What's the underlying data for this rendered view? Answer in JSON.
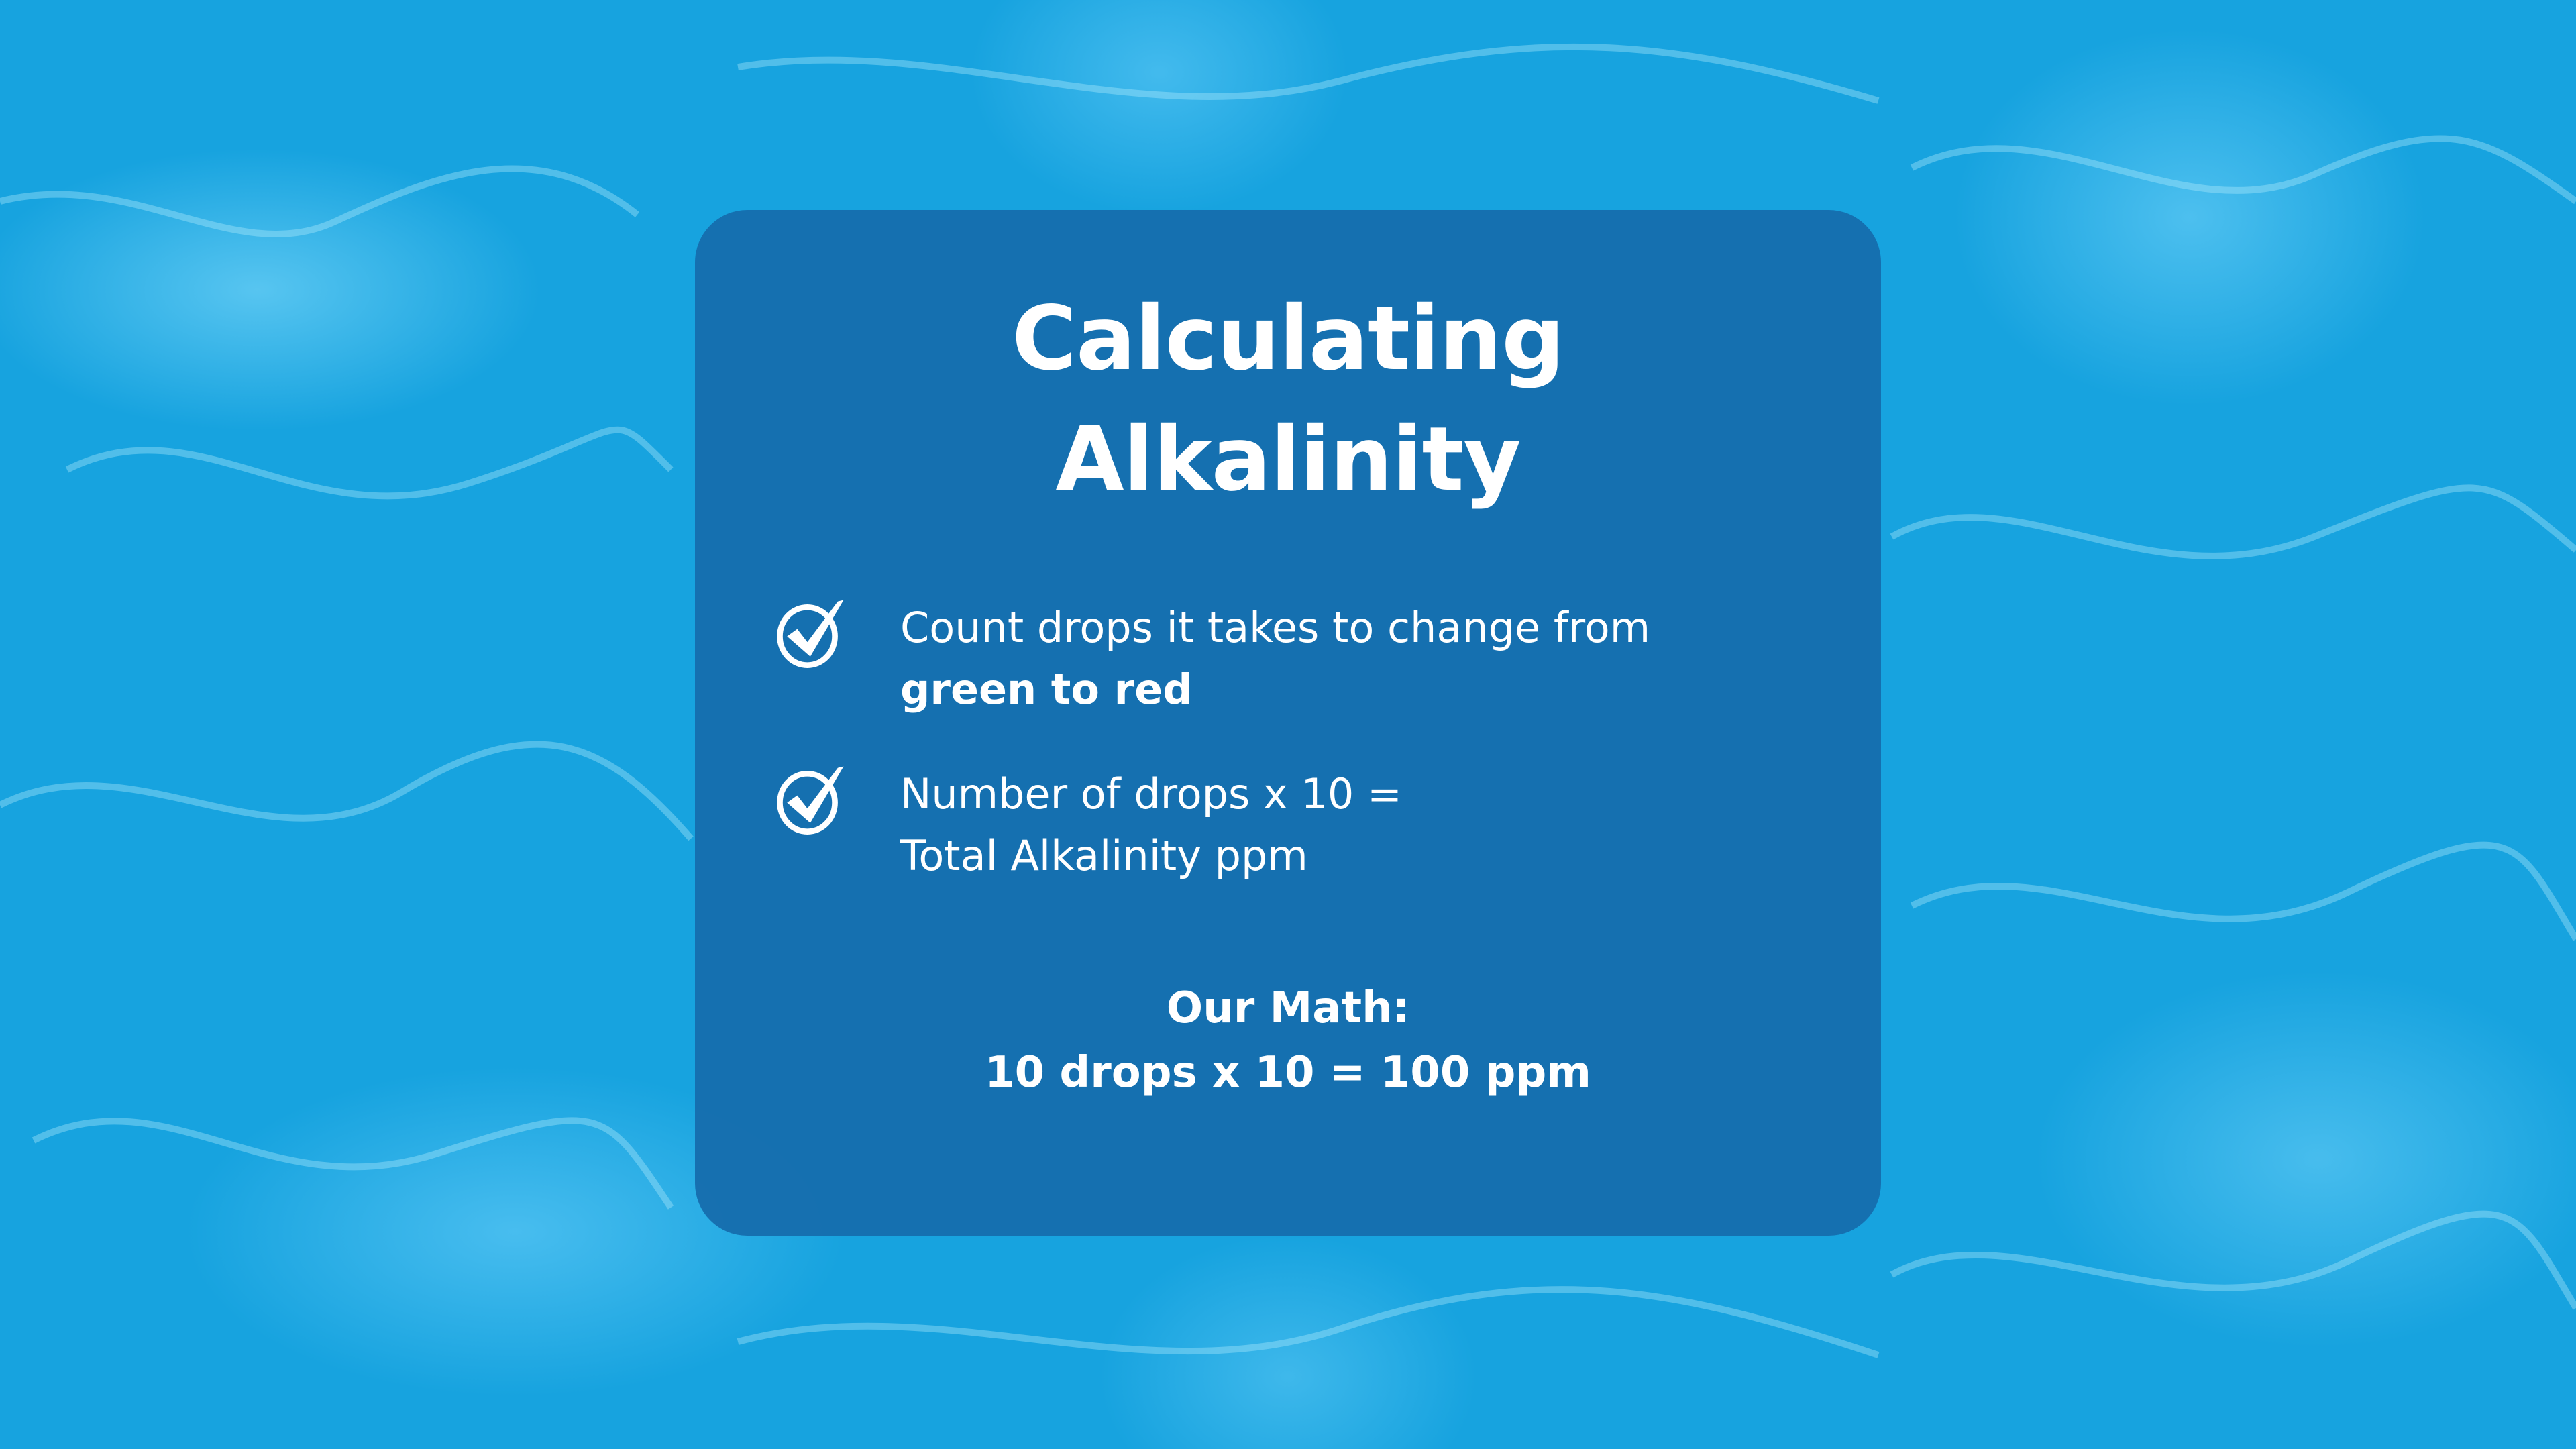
{
  "title": {
    "line1": "Calculating",
    "line2": "Alkalinity"
  },
  "bullets": [
    {
      "icon": "check-circle-icon",
      "text": "Count drops it takes to change from",
      "bold": "green to red"
    },
    {
      "icon": "check-circle-icon",
      "text": "Number of drops x 10 =",
      "text2": "Total Alkalinity ppm"
    }
  ],
  "math": {
    "label": "Our Math:",
    "formula": "10 drops x 10 = 100 ppm"
  },
  "colors": {
    "background": "#17a3df",
    "card": "#166cac",
    "text": "#ffffff"
  }
}
